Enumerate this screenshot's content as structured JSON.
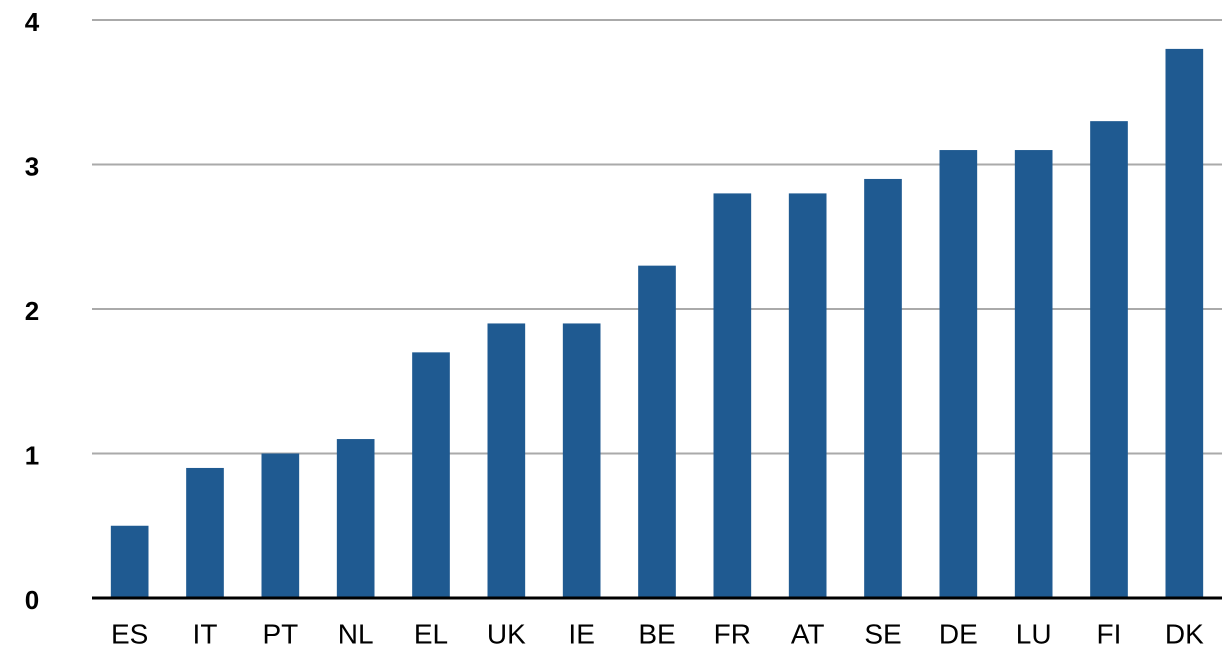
{
  "chart_data": {
    "type": "bar",
    "categories": [
      "ES",
      "IT",
      "PT",
      "NL",
      "EL",
      "UK",
      "IE",
      "BE",
      "FR",
      "AT",
      "SE",
      "DE",
      "LU",
      "FI",
      "DK"
    ],
    "values": [
      0.5,
      0.9,
      1.0,
      1.1,
      1.7,
      1.9,
      1.9,
      2.3,
      2.8,
      2.8,
      2.9,
      3.1,
      3.1,
      3.3,
      3.8
    ],
    "color": "#1f5a91",
    "ylim": [
      0,
      4
    ],
    "yticks": [
      0,
      1,
      2,
      3,
      4
    ],
    "grid": true
  }
}
